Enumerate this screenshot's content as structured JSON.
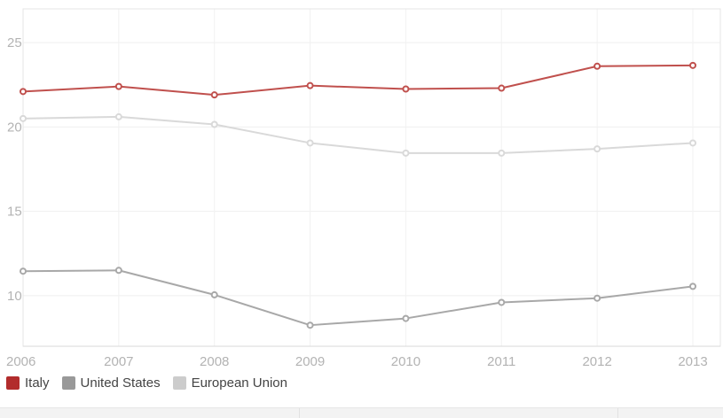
{
  "chart_data": {
    "type": "line",
    "title": "",
    "xlabel": "",
    "ylabel": "",
    "categories": [
      "2006",
      "2007",
      "2008",
      "2009",
      "2010",
      "2011",
      "2012",
      "2013"
    ],
    "y_ticks": [
      "10",
      "15",
      "20",
      "25"
    ],
    "ylim": [
      7,
      27
    ],
    "grid": true,
    "legend_position": "bottom-left",
    "series": [
      {
        "name": "Italy",
        "color": "#b22c2c",
        "line_color": "#c0504d",
        "values": [
          22.1,
          22.4,
          21.9,
          22.45,
          22.25,
          22.3,
          23.6,
          23.65
        ]
      },
      {
        "name": "United States",
        "color": "#999999",
        "line_color": "#a8a8a8",
        "values": [
          11.45,
          11.5,
          10.05,
          8.25,
          8.65,
          9.6,
          9.85,
          10.55
        ]
      },
      {
        "name": "European Union",
        "color": "#cccccc",
        "line_color": "#d9d9d9",
        "values": [
          20.5,
          20.6,
          20.15,
          19.05,
          18.45,
          18.45,
          18.7,
          19.05
        ]
      }
    ]
  }
}
